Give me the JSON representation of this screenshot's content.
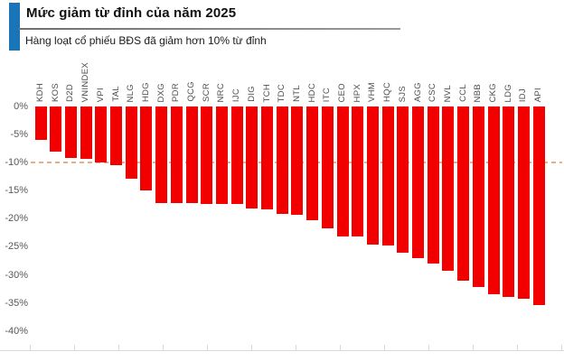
{
  "header": {
    "title": "Mức giảm từ đỉnh của năm 2025",
    "subtitle": "Hàng loạt cổ phiếu BĐS đã giảm hơn 10% từ đỉnh",
    "accent_color": "#1974b8"
  },
  "chart_data": {
    "type": "bar",
    "orientation": "vertical",
    "title": "Mức giảm từ đỉnh của năm 2025",
    "subtitle": "Hàng loạt cổ phiếu BĐS đã giảm hơn 10% từ đỉnh",
    "unit": "%",
    "categories": [
      "KDH",
      "KOS",
      "D2D",
      "VNINDEX",
      "VPI",
      "TAL",
      "NLG",
      "HDG",
      "DXG",
      "PDR",
      "QCG",
      "SCR",
      "NRC",
      "IJC",
      "DIG",
      "TCH",
      "TDC",
      "NTL",
      "HDC",
      "ITC",
      "CEO",
      "HPX",
      "VHM",
      "HQC",
      "SJS",
      "AGG",
      "CSC",
      "NVL",
      "CCL",
      "NBB",
      "CKG",
      "LDG",
      "IDJ",
      "API"
    ],
    "values": [
      -5.9,
      -8.1,
      -9.1,
      -9.3,
      -10.0,
      -10.4,
      -12.9,
      -14.9,
      -17.2,
      -17.2,
      -17.2,
      -17.3,
      -17.3,
      -17.4,
      -18.2,
      -18.3,
      -19.1,
      -19.3,
      -20.3,
      -21.7,
      -23.1,
      -23.2,
      -24.6,
      -24.8,
      -26.0,
      -27.0,
      -28.0,
      -29.3,
      -31.0,
      -32.2,
      -33.4,
      -34.0,
      -34.2,
      -35.4
    ],
    "y_ticks": [
      "0%",
      "-5%",
      "-10%",
      "-15%",
      "-20%",
      "-25%",
      "-30%",
      "-35%",
      "-40%"
    ],
    "ylim": [
      -40,
      0
    ],
    "xlabel": "",
    "ylabel": "",
    "grid": false,
    "legend_position": "none",
    "bar_color": "#f20000",
    "label_color": "#4d4d4d",
    "reference_line": {
      "value": -10,
      "style": "dashed",
      "color": "#e2a271"
    }
  }
}
